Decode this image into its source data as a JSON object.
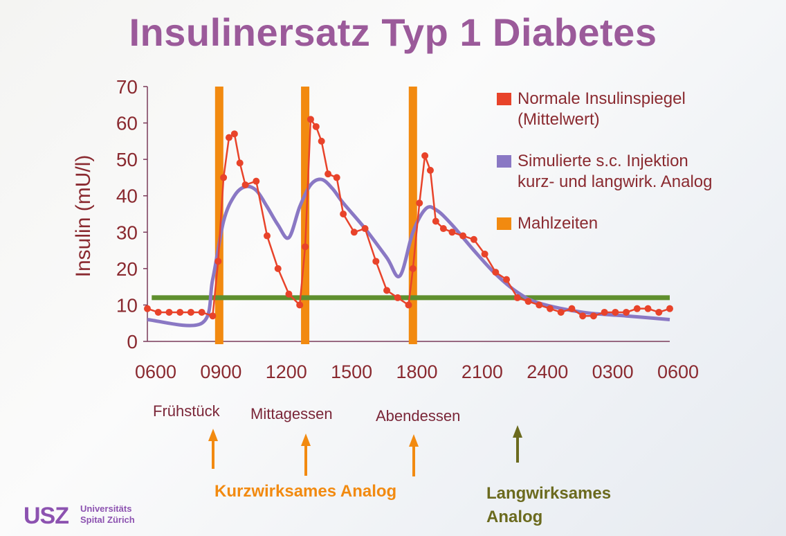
{
  "title": "Insulinersatz Typ 1 Diabetes",
  "colors": {
    "title": "#9b5a9a",
    "normal": "#e8432a",
    "simulated": "#8a78c4",
    "meals": "#f28a10",
    "long_acting": "#5f8f2e",
    "axis_text": "#8a2a30",
    "short_analog": "#f28a10",
    "long_analog": "#6b6a1e",
    "logo": "#8c52b0"
  },
  "chart_data": {
    "type": "line",
    "title": "",
    "ylabel": "Insulin (mU/l)",
    "xlabel": "",
    "ylim": [
      0,
      70
    ],
    "yticks": [
      "0",
      "10",
      "20",
      "30",
      "40",
      "50",
      "60",
      "70"
    ],
    "xlim_hours": [
      6,
      30
    ],
    "xticks": [
      {
        "h": 6,
        "label": "0600"
      },
      {
        "h": 9,
        "label": "0900"
      },
      {
        "h": 12,
        "label": "1200"
      },
      {
        "h": 15,
        "label": "1500"
      },
      {
        "h": 18,
        "label": "1800"
      },
      {
        "h": 21,
        "label": "2100"
      },
      {
        "h": 24,
        "label": "2400"
      },
      {
        "h": 27,
        "label": "0300"
      },
      {
        "h": 30,
        "label": "0600"
      }
    ],
    "grid": false,
    "legend_placement": "top-right",
    "legend": [
      {
        "key": "normal",
        "lines": [
          "Normale Insulinspiegel",
          "(Mittelwert)"
        ]
      },
      {
        "key": "simulated",
        "lines": [
          "Simulierte s.c. Injektion",
          "kurz- und langwirk. Analog"
        ]
      },
      {
        "key": "meals",
        "lines": [
          "Mahlzeiten"
        ]
      }
    ],
    "series": [
      {
        "name": "Normale Insulinspiegel (Mittelwert)",
        "key": "normal",
        "style": "line-markers",
        "x": [
          6,
          6.5,
          7,
          7.5,
          8,
          8.5,
          9,
          9.25,
          9.5,
          9.75,
          10,
          10.25,
          10.5,
          11,
          11.5,
          12,
          12.5,
          13,
          13.25,
          13.5,
          13.75,
          14,
          14.3,
          14.7,
          15,
          15.5,
          16,
          16.5,
          17,
          17.5,
          18,
          18.2,
          18.5,
          18.75,
          19,
          19.25,
          19.6,
          20,
          20.5,
          21,
          21.5,
          22,
          22.5,
          23,
          23.5,
          24,
          24.5,
          25,
          25.5,
          26,
          26.5,
          27,
          27.5,
          28,
          28.5,
          29,
          29.5,
          30
        ],
        "y": [
          9,
          8,
          8,
          8,
          8,
          8,
          7,
          22,
          45,
          56,
          57,
          49,
          43,
          44,
          29,
          20,
          13,
          10,
          26,
          61,
          59,
          55,
          46,
          45,
          35,
          30,
          31,
          22,
          14,
          12,
          10,
          20,
          38,
          51,
          47,
          33,
          31,
          30,
          29,
          28,
          24,
          19,
          17,
          12,
          11,
          10,
          9,
          8,
          9,
          7,
          7,
          8,
          8,
          8,
          9,
          9,
          8,
          9
        ]
      },
      {
        "name": "Simulierte s.c. Injektion kurz- und langwirk. Analog",
        "key": "simulated",
        "style": "smooth",
        "x": [
          6,
          8.5,
          9,
          9.5,
          10,
          10.5,
          11,
          11.5,
          12,
          12.5,
          13,
          13.5,
          14,
          14.5,
          15,
          16,
          17,
          17.6,
          18.2,
          18.8,
          19.3,
          20,
          21,
          22,
          23,
          24,
          26,
          28,
          30
        ],
        "y": [
          6,
          5,
          17,
          33,
          40,
          42.5,
          41.5,
          37,
          32,
          28.5,
          37,
          43,
          44.5,
          42,
          38,
          31,
          23,
          18,
          30,
          36.5,
          36,
          32,
          25,
          18.5,
          13.5,
          10.5,
          8,
          7,
          6
        ]
      },
      {
        "name": "Langwirksames Analog",
        "key": "long_acting",
        "style": "flat",
        "x": [
          6.2,
          30
        ],
        "y": [
          12,
          12
        ]
      }
    ],
    "meal_bars_hours": [
      9.3,
      13.25,
      18.2
    ]
  },
  "annotations": {
    "meals": [
      "Frühstück",
      "Mittagessen",
      "Abendessen"
    ],
    "short_acting": "Kurzwirksames Analog",
    "long_acting_lines": [
      "Langwirksames",
      "Analog"
    ]
  },
  "logo": {
    "mark": "USZ",
    "line1": "Universitäts",
    "line2": "Spital Zürich"
  }
}
